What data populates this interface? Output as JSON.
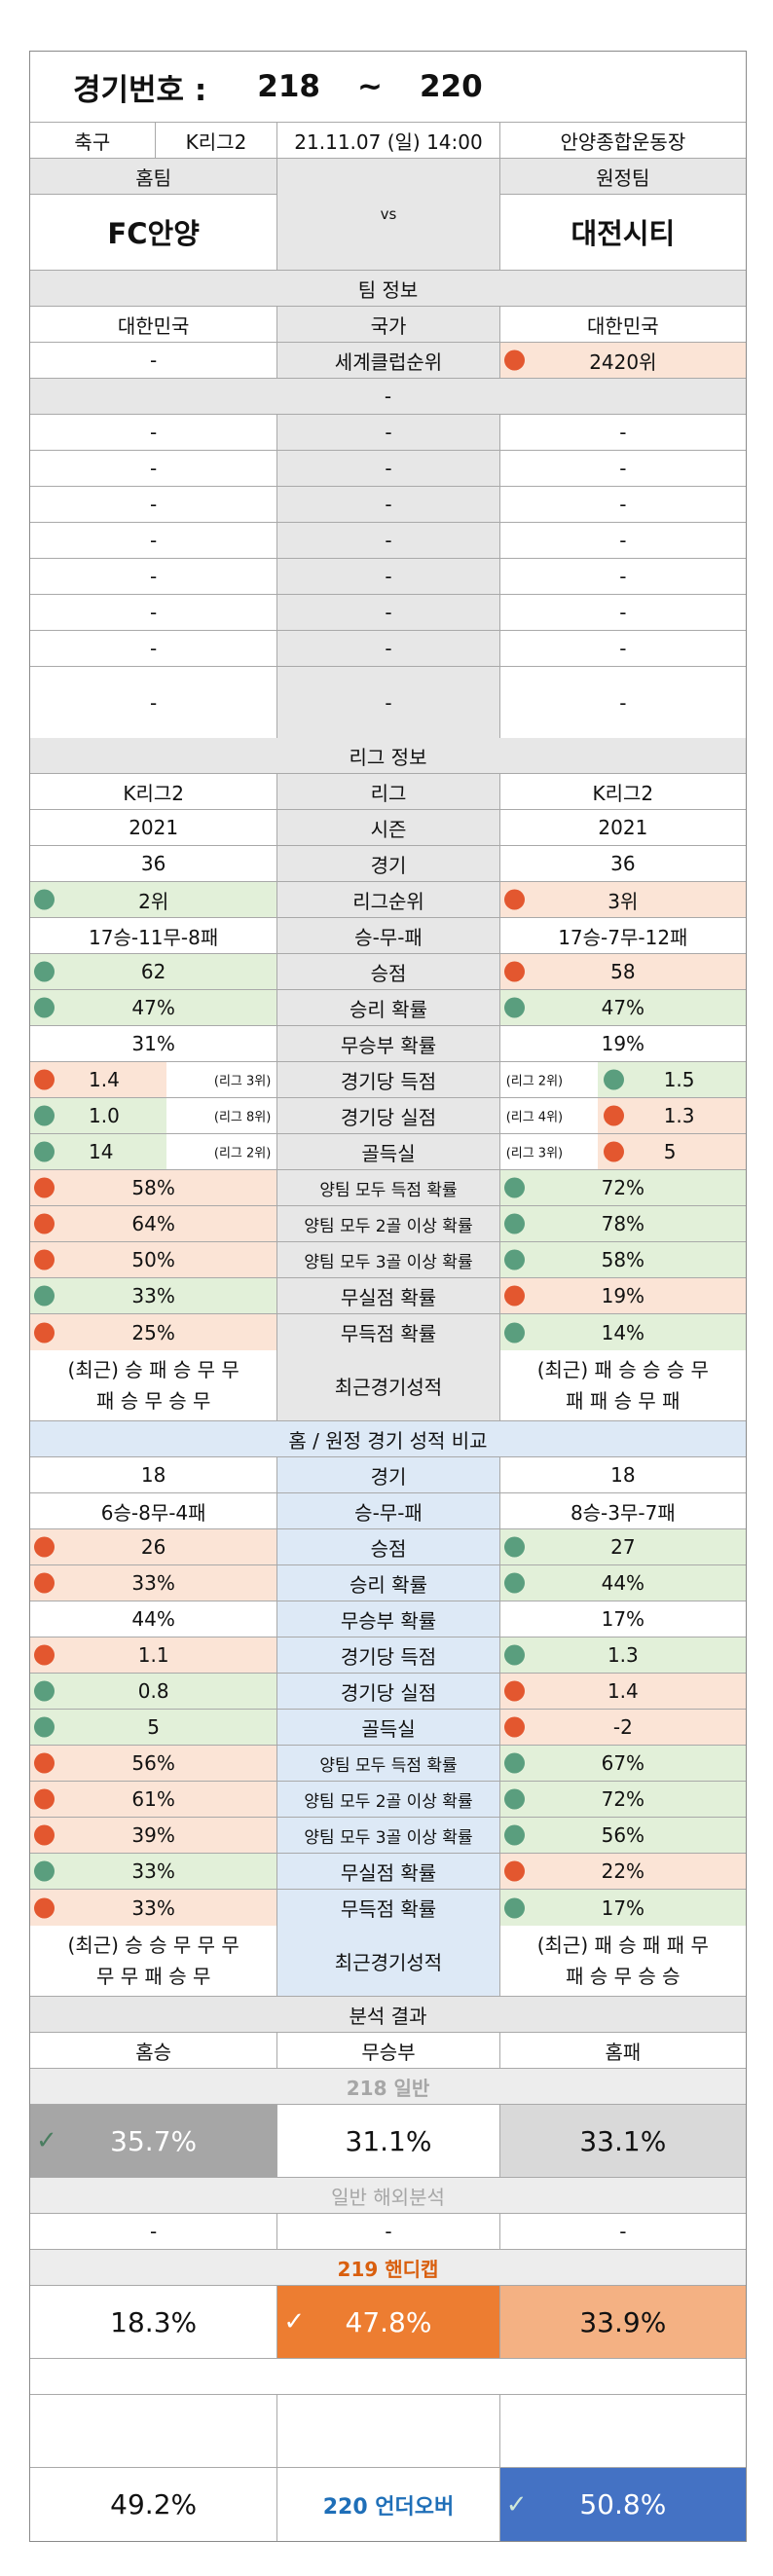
{
  "header": {
    "label": "경기번호 :",
    "from": "218",
    "tilde": "~",
    "to": "220"
  },
  "match": {
    "sport": "축구",
    "league": "K리그2",
    "datetime": "21.11.07 (일) 14:00",
    "venue": "안양종합운동장"
  },
  "teams": {
    "home_label": "홈팀",
    "away_label": "원정팀",
    "home": "FC안양",
    "vs": "vs",
    "away": "대전시티"
  },
  "team_info": {
    "title": "팀 정보",
    "country_home": "대한민국",
    "country_label": "국가",
    "country_away": "대한민국",
    "rank_home": "-",
    "rank_label": "세계클럽순위",
    "rank_away": "2420위",
    "dash": "-"
  },
  "empty_rows": [
    "-",
    "-",
    "-",
    "-",
    "-",
    "-",
    "-",
    "-"
  ],
  "league_info": {
    "title": "리그 정보",
    "rows": [
      {
        "h": "K리그2",
        "l": "리그",
        "a": "K리그2"
      },
      {
        "h": "2021",
        "l": "시즌",
        "a": "2021"
      },
      {
        "h": "36",
        "l": "경기",
        "a": "36"
      },
      {
        "h": "2위",
        "l": "리그순위",
        "a": "3위",
        "hd": "g",
        "ad": "r",
        "hc": "gr",
        "ac": "pk"
      },
      {
        "h": "17승-11무-8패",
        "l": "승-무-패",
        "a": "17승-7무-12패"
      },
      {
        "h": "62",
        "l": "승점",
        "a": "58",
        "hd": "g",
        "ad": "r",
        "hc": "gr",
        "ac": "pk"
      },
      {
        "h": "47%",
        "l": "승리 확률",
        "a": "47%",
        "hd": "g",
        "ad": "g",
        "hc": "gr",
        "ac": "gr"
      },
      {
        "h": "31%",
        "l": "무승부 확률",
        "a": "19%"
      },
      {
        "h": "1.4",
        "l": "경기당 득점",
        "a": "1.5",
        "hd": "r",
        "ad": "g",
        "hc": "pk",
        "ac": "gr",
        "hs": "(리그 3위)",
        "as": "(리그 2위)"
      },
      {
        "h": "1.0",
        "l": "경기당 실점",
        "a": "1.3",
        "hd": "g",
        "ad": "r",
        "hc": "gr",
        "ac": "pk",
        "hs": "(리그 8위)",
        "as": "(리그 4위)"
      },
      {
        "h": "14",
        "l": "골득실",
        "a": "5",
        "hd": "g",
        "ad": "r",
        "hc": "gr",
        "ac": "pk",
        "hs": "(리그 2위)",
        "as": "(리그 3위)"
      },
      {
        "h": "58%",
        "l": "양팀 모두 득점 확률",
        "a": "72%",
        "hd": "r",
        "ad": "g",
        "hc": "pk",
        "ac": "gr"
      },
      {
        "h": "64%",
        "l": "양팀 모두 2골 이상 확률",
        "a": "78%",
        "hd": "r",
        "ad": "g",
        "hc": "pk",
        "ac": "gr"
      },
      {
        "h": "50%",
        "l": "양팀 모두 3골 이상 확률",
        "a": "58%",
        "hd": "r",
        "ad": "g",
        "hc": "pk",
        "ac": "gr"
      },
      {
        "h": "33%",
        "l": "무실점 확률",
        "a": "19%",
        "hd": "g",
        "ad": "r",
        "hc": "gr",
        "ac": "pk"
      },
      {
        "h": "25%",
        "l": "무득점 확률",
        "a": "14%",
        "hd": "r",
        "ad": "g",
        "hc": "pk",
        "ac": "gr"
      }
    ],
    "recent_home_1": "(최근) 승 패 승 무 무",
    "recent_home_2": "패 승 무 승 무",
    "recent_label": "최근경기성적",
    "recent_away_1": "(최근) 패 승 승 승 무",
    "recent_away_2": "패 패 승 무 패"
  },
  "compare": {
    "title": "홈 / 원정 경기 성적 비교",
    "rows": [
      {
        "h": "18",
        "l": "경기",
        "a": "18"
      },
      {
        "h": "6승-8무-4패",
        "l": "승-무-패",
        "a": "8승-3무-7패"
      },
      {
        "h": "26",
        "l": "승점",
        "a": "27",
        "hd": "r",
        "ad": "g",
        "hc": "pk",
        "ac": "gr"
      },
      {
        "h": "33%",
        "l": "승리 확률",
        "a": "44%",
        "hd": "r",
        "ad": "g",
        "hc": "pk",
        "ac": "gr"
      },
      {
        "h": "44%",
        "l": "무승부 확률",
        "a": "17%"
      },
      {
        "h": "1.1",
        "l": "경기당 득점",
        "a": "1.3",
        "hd": "r",
        "ad": "g",
        "hc": "pk",
        "ac": "gr"
      },
      {
        "h": "0.8",
        "l": "경기당 실점",
        "a": "1.4",
        "hd": "g",
        "ad": "r",
        "hc": "gr",
        "ac": "pk"
      },
      {
        "h": "5",
        "l": "골득실",
        "a": "-2",
        "hd": "g",
        "ad": "r",
        "hc": "gr",
        "ac": "pk"
      },
      {
        "h": "56%",
        "l": "양팀 모두 득점 확률",
        "a": "67%",
        "hd": "r",
        "ad": "g",
        "hc": "pk",
        "ac": "gr"
      },
      {
        "h": "61%",
        "l": "양팀 모두 2골 이상 확률",
        "a": "72%",
        "hd": "r",
        "ad": "g",
        "hc": "pk",
        "ac": "gr"
      },
      {
        "h": "39%",
        "l": "양팀 모두 3골 이상 확률",
        "a": "56%",
        "hd": "r",
        "ad": "g",
        "hc": "pk",
        "ac": "gr"
      },
      {
        "h": "33%",
        "l": "무실점 확률",
        "a": "22%",
        "hd": "g",
        "ad": "r",
        "hc": "gr",
        "ac": "pk"
      },
      {
        "h": "33%",
        "l": "무득점 확률",
        "a": "17%",
        "hd": "r",
        "ad": "g",
        "hc": "pk",
        "ac": "gr"
      }
    ],
    "recent_home_1": "(최근) 승 승 무 무 무",
    "recent_home_2": "무 무 패 승 무",
    "recent_label": "최근경기성적",
    "recent_away_1": "(최근) 패 승 패 패 무",
    "recent_away_2": "패 승 무 승 승"
  },
  "analysis": {
    "title": "분석 결과",
    "home_win": "홈승",
    "draw": "무승부",
    "home_loss": "홈패",
    "g218_title": "218 일반",
    "g218": [
      "35.7%",
      "31.1%",
      "33.1%"
    ],
    "foreign_title": "일반 해외분석",
    "foreign": [
      "-",
      "-",
      "-"
    ],
    "g219_title": "219 핸디캡",
    "g219": [
      "18.3%",
      "47.8%",
      "33.9%"
    ],
    "g220_label": "220 언더오버",
    "g220": [
      "49.2%",
      "50.8%"
    ],
    "check": "✓",
    "colors": {
      "grey": "#a6a6a6",
      "lightgrey": "#d9d9d9",
      "orange": "#ed7d31",
      "peach": "#f4b183",
      "blue": "#4472c4",
      "title_grey": "#a6a6a6",
      "title_orange": "#d95f0e",
      "under_over_blue": "#1f6fb8"
    }
  }
}
